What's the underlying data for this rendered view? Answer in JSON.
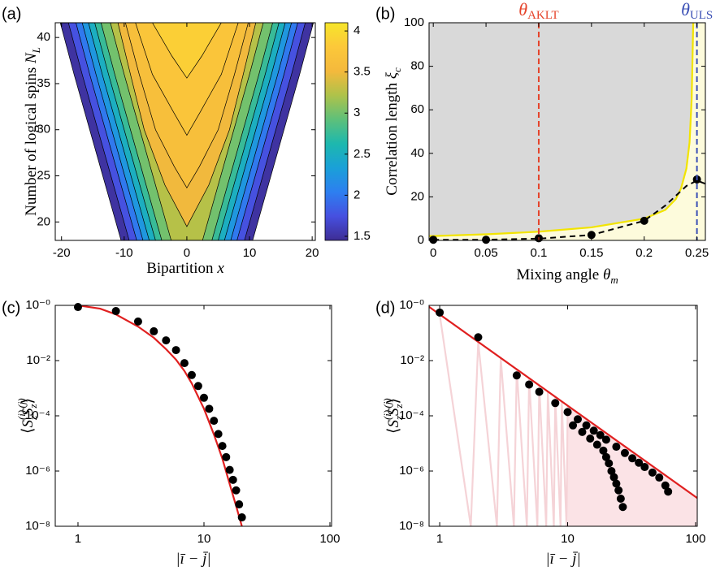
{
  "chart_data": [
    {
      "type": "contour",
      "panel": "(a)",
      "xlabel": {
        "parts": [
          {
            "text": "Bipartition "
          },
          {
            "text": "x",
            "italic": true
          }
        ]
      },
      "ylabel": {
        "parts": [
          {
            "text": "Number of logical spins "
          },
          {
            "text": "N",
            "italic": true
          },
          {
            "text": "L",
            "sub": true,
            "italic": true
          }
        ]
      },
      "xlim": [
        -21,
        20.5
      ],
      "ylim": [
        18,
        41.6
      ],
      "xticks": [
        -20,
        -10,
        0,
        10,
        20
      ],
      "yticks": [
        20,
        25,
        30,
        35,
        40
      ],
      "clim": [
        1.45,
        4.1
      ],
      "cticks": [
        1.5,
        2,
        2.5,
        3,
        3.5,
        4
      ],
      "colormap": [
        "#3e2d94",
        "#4650e0",
        "#2d7ff0",
        "#1aa0d8",
        "#1db8ae",
        "#5ec07a",
        "#aec24a",
        "#f4b93c",
        "#fcc83a",
        "#f6e62a"
      ],
      "contours": [
        {
          "level": 1.5,
          "x": [
            -20.2,
            -18,
            -15.5,
            -13,
            -10.5,
            10.5,
            13,
            15.5,
            18,
            20.2
          ],
          "y": [
            41.6,
            36,
            30,
            24,
            18,
            18,
            24,
            30,
            36,
            41.6
          ]
        },
        {
          "level": 1.75,
          "x": [
            -18.9,
            -16.7,
            -14.2,
            -11.7,
            -9.2,
            9.2,
            11.7,
            14.2,
            16.7,
            18.9
          ],
          "y": [
            41.6,
            36,
            30,
            24,
            18,
            18,
            24,
            30,
            36,
            41.6
          ]
        },
        {
          "level": 2.0,
          "x": [
            -17.7,
            -15.5,
            -13,
            -10.5,
            -8,
            8,
            10.5,
            13,
            15.5,
            17.7
          ],
          "y": [
            41.6,
            36,
            30,
            24,
            18,
            18,
            24,
            30,
            36,
            41.6
          ]
        },
        {
          "level": 2.25,
          "x": [
            -16.7,
            -14.5,
            -12,
            -9.5,
            -7,
            7,
            9.5,
            12,
            14.5,
            16.7
          ],
          "y": [
            41.6,
            36,
            30,
            24,
            18,
            18,
            24,
            30,
            36,
            41.6
          ]
        },
        {
          "level": 2.5,
          "x": [
            -15.7,
            -13.5,
            -11,
            -8.5,
            -6,
            6,
            8.5,
            11,
            13.5,
            15.7
          ],
          "y": [
            41.6,
            36,
            30,
            24,
            18,
            18,
            24,
            30,
            36,
            41.6
          ]
        },
        {
          "level": 2.75,
          "x": [
            -14.7,
            -12.5,
            -10,
            -7.5,
            -5,
            5,
            7.5,
            10,
            12.5,
            14.7
          ],
          "y": [
            41.6,
            36,
            30,
            24,
            18,
            18,
            24,
            30,
            36,
            41.6
          ]
        },
        {
          "level": 3.0,
          "x": [
            -13.7,
            -11.5,
            -9,
            -6.5,
            -4,
            4,
            6.5,
            9,
            11.5,
            13.7
          ],
          "y": [
            41.6,
            36,
            30,
            24,
            18,
            18,
            24,
            30,
            36,
            41.6
          ]
        },
        {
          "level": 3.25,
          "x": [
            -12.2,
            -10,
            -7.5,
            -5,
            -2.5,
            2.5,
            5,
            7.5,
            10,
            12.2
          ],
          "y": [
            41.6,
            36,
            30,
            24,
            18,
            18,
            24,
            30,
            36,
            41.6
          ]
        },
        {
          "level": 3.5,
          "x": [
            -11,
            -9,
            -6.8,
            -3.5,
            0,
            3.5,
            6.8,
            9,
            11
          ],
          "y": [
            41.6,
            36,
            30,
            24,
            19.5,
            24,
            30,
            36,
            41.6
          ]
        },
        {
          "level": 3.625,
          "x": [
            -9.8,
            -7.6,
            -5,
            -2,
            0,
            2,
            5,
            7.6,
            9.8
          ],
          "y": [
            41.6,
            36,
            30,
            26,
            23.7,
            26,
            30,
            36,
            41.6
          ]
        },
        {
          "level": 3.75,
          "x": [
            -8.2,
            -5.5,
            -2.2,
            0,
            2.2,
            5.5,
            8.2
          ],
          "y": [
            41.6,
            36,
            32,
            29.4,
            32,
            36,
            41.6
          ]
        },
        {
          "level": 3.875,
          "x": [
            -5.5,
            -2.4,
            0,
            2.4,
            5.5
          ],
          "y": [
            41.6,
            38,
            35.6,
            38,
            41.6
          ]
        }
      ]
    },
    {
      "type": "line",
      "panel": "(b)",
      "background": "#d9d9d9",
      "xlabel": {
        "parts": [
          {
            "text": "Mixing angle "
          },
          {
            "text": "θ",
            "italic": true
          },
          {
            "text": "m",
            "sub": true,
            "italic": true
          }
        ]
      },
      "ylabel": {
        "parts": [
          {
            "text": "Correlation length "
          },
          {
            "text": "ξ",
            "italic": true
          },
          {
            "text": "c",
            "sub": true,
            "italic": true
          }
        ]
      },
      "xlim": [
        -0.004,
        0.258
      ],
      "ylim": [
        0,
        100
      ],
      "xticks": [
        0,
        0.05,
        0.1,
        0.15,
        0.2,
        0.25
      ],
      "yticks": [
        0,
        20,
        40,
        60,
        80,
        100
      ],
      "vlines": [
        {
          "x": 0.1,
          "color": "#e5432a",
          "label": {
            "parts": [
              {
                "text": "θ",
                "italic": true
              },
              {
                "text": "AKLT",
                "sub": true
              }
            ]
          }
        },
        {
          "x": 0.25,
          "color": "#3a4fb5",
          "label": {
            "parts": [
              {
                "text": "θ",
                "italic": true
              },
              {
                "text": "ULS",
                "sub": true
              }
            ]
          }
        }
      ],
      "series": [
        {
          "style": "line",
          "color": "#f2e400",
          "fill": "#fdfbdc",
          "fill_to": "right",
          "x": [
            -0.004,
            0,
            0.05,
            0.1,
            0.15,
            0.2,
            0.22,
            0.23,
            0.235,
            0.24,
            0.243,
            0.245,
            0.2465
          ],
          "values": [
            2,
            2,
            2.8,
            4,
            6,
            10,
            14,
            19,
            24,
            33,
            45,
            65,
            100
          ]
        },
        {
          "style": "dashed",
          "color": "#000000",
          "x": [
            0,
            0.05,
            0.1,
            0.15,
            0.2,
            0.22,
            0.24,
            0.25,
            0.258
          ],
          "values": [
            0.3,
            0.3,
            0.8,
            2.5,
            9,
            16,
            25,
            27.5,
            26
          ]
        },
        {
          "style": "markers",
          "color": "#000000",
          "x": [
            0,
            0.05,
            0.1,
            0.15,
            0.2,
            0.25
          ],
          "values": [
            0.3,
            0.3,
            1,
            2.5,
            9,
            28
          ]
        }
      ]
    },
    {
      "type": "line",
      "panel": "(c)",
      "xlog": true,
      "ylog": true,
      "xlabel": {
        "parts": [
          {
            "text": "|ī − j̄|",
            "italic": true
          }
        ]
      },
      "ylabel": {
        "parts": [
          {
            "text": "⟨"
          },
          {
            "text": "S",
            "italic": true
          },
          {
            "text": "(i)",
            "sup": true,
            "italic": true
          },
          {
            "text": "z",
            "sub": true,
            "italic": true
          },
          {
            "text": "S",
            "italic": true
          },
          {
            "text": "(j)",
            "sup": true,
            "italic": true
          },
          {
            "text": "z",
            "sub": true,
            "italic": true
          },
          {
            "text": "⟩"
          }
        ]
      },
      "xlim": [
        0.66,
        103
      ],
      "ylim": [
        1e-08,
        1
      ],
      "xticks": [
        1,
        10,
        100
      ],
      "yticks": [
        {
          "value": 1,
          "label": "10⁻⁰"
        },
        {
          "value": 0.01,
          "label": "10⁻²"
        },
        {
          "value": 0.0001,
          "label": "10⁻⁴"
        },
        {
          "value": 1e-06,
          "label": "10⁻⁶"
        },
        {
          "value": 1e-08,
          "label": "10⁻⁸"
        }
      ],
      "series": [
        {
          "style": "line",
          "color": "#e02020",
          "x": [
            1,
            1.5,
            2,
            3,
            4,
            5,
            6,
            7,
            8,
            10,
            12,
            14,
            16,
            18,
            20
          ],
          "values": [
            1,
            0.76,
            0.47,
            0.17,
            0.067,
            0.026,
            0.0108,
            0.0042,
            0.0015,
            0.00018,
            2.1e-05,
            2.8e-06,
            3.4e-07,
            5.4e-08,
            1e-08
          ]
        },
        {
          "style": "markers",
          "color": "#000000",
          "x": [
            1,
            2,
            3,
            4,
            5,
            6,
            7,
            8,
            9,
            10,
            11,
            12,
            13,
            14,
            15,
            16,
            17,
            18,
            19,
            20
          ],
          "values": [
            0.87,
            0.62,
            0.26,
            0.115,
            0.054,
            0.024,
            0.0081,
            0.003,
            0.0012,
            0.00045,
            0.00018,
            6.6e-05,
            2.2e-05,
            8.1e-06,
            3.2e-06,
            1.1e-06,
            4.8e-07,
            2e-07,
            6.2e-08,
            2.1e-08
          ]
        }
      ]
    },
    {
      "type": "line",
      "panel": "(d)",
      "xlog": true,
      "ylog": true,
      "xlabel": {
        "parts": [
          {
            "text": "|ī − j̄|",
            "italic": true
          }
        ]
      },
      "ylabel": {
        "parts": [
          {
            "text": "⟨"
          },
          {
            "text": "S",
            "italic": true
          },
          {
            "text": "(i)",
            "sup": true,
            "italic": true
          },
          {
            "text": "z",
            "sub": true,
            "italic": true
          },
          {
            "text": "S",
            "italic": true
          },
          {
            "text": "(j)",
            "sup": true,
            "italic": true
          },
          {
            "text": "z",
            "sub": true,
            "italic": true
          },
          {
            "text": "⟩"
          }
        ]
      },
      "xlim": [
        0.826,
        103
      ],
      "ylim": [
        1e-08,
        1
      ],
      "xticks": [
        1,
        10,
        100
      ],
      "yticks": [
        {
          "value": 1,
          "label": "10⁻⁰"
        },
        {
          "value": 0.01,
          "label": "10⁻²"
        },
        {
          "value": 0.0001,
          "label": "10⁻⁴"
        },
        {
          "value": 1e-06,
          "label": "10⁻⁶"
        },
        {
          "value": 1e-08,
          "label": "10⁻⁸"
        }
      ],
      "series": [
        {
          "style": "none",
          "fill": "#fbe3e6",
          "fill_to": "bottom",
          "x": [
            10,
            103
          ],
          "values": [
            0.00023,
            1.05e-07
          ]
        },
        {
          "style": "line",
          "color": "#f5d3d7",
          "x": [
            1,
            1.75,
            2,
            2.8,
            3,
            3.8,
            4,
            4.8,
            5,
            5.8,
            6,
            6.8,
            7,
            7.8,
            8,
            8.8,
            9,
            9.8,
            10
          ],
          "values": [
            0.47,
            1e-08,
            0.0475,
            1e-08,
            0.0124,
            1e-08,
            0.0048,
            1e-08,
            0.0023,
            1e-08,
            0.00125,
            1e-08,
            0.00075,
            1e-08,
            0.00048,
            1e-08,
            0.00033,
            1e-08,
            0.00023
          ]
        },
        {
          "style": "line",
          "color": "#e02020",
          "x": [
            0.826,
            103
          ],
          "values": [
            0.885,
            1.05e-07
          ]
        },
        {
          "style": "markers",
          "color": "#000000",
          "x": [
            1,
            2,
            4,
            5,
            6,
            8,
            10,
            12,
            14,
            16,
            18,
            20,
            24,
            28,
            32,
            36,
            40,
            46,
            52,
            58,
            61,
            11,
            13,
            15,
            17,
            19,
            20,
            21,
            22,
            23,
            24,
            25,
            26,
            27
          ],
          "values": [
            0.55,
            0.07,
            0.0029,
            0.00136,
            0.00074,
            0.00029,
            0.000137,
            7.5e-05,
            4.5e-05,
            2.9e-05,
            2e-05,
            1.37e-05,
            7.6e-06,
            4.5e-06,
            2.9e-06,
            2e-06,
            1.4e-06,
            8.8e-07,
            5.8e-07,
            3e-07,
            1.8e-07,
            4.5e-05,
            2.6e-05,
            1.5e-05,
            9e-06,
            5.5e-06,
            3.2e-06,
            1.9e-06,
            1e-06,
            6e-07,
            3.5e-07,
            2e-07,
            1e-07,
            5e-08
          ]
        }
      ]
    }
  ]
}
